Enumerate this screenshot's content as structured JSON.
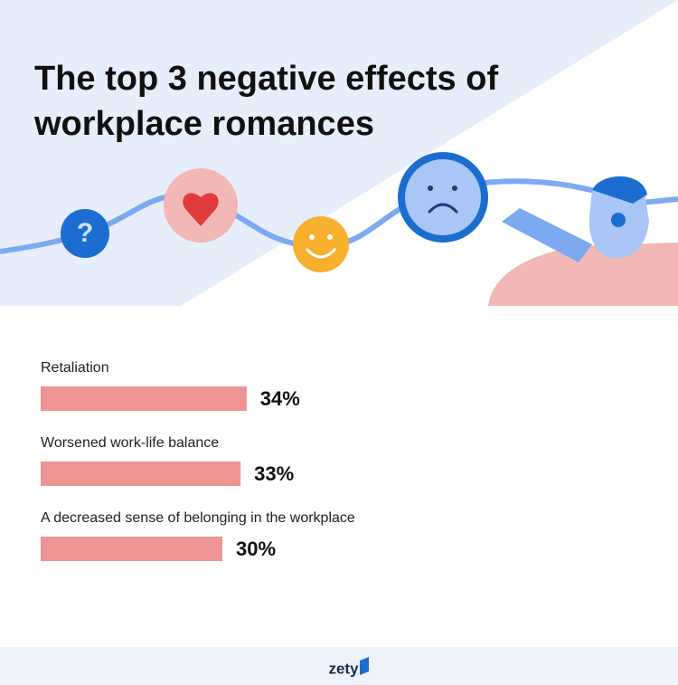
{
  "chart_data": {
    "type": "bar",
    "orientation": "horizontal",
    "title": "The top 3 negative effects of workplace romances",
    "categories": [
      "Retaliation",
      "Worsened work-life balance",
      "A decreased sense of belonging in the workplace"
    ],
    "values": [
      34,
      33,
      30
    ],
    "value_labels": [
      "34%",
      "33%",
      "30%"
    ],
    "color": "#ef9494",
    "xlim": [
      0,
      100
    ]
  },
  "brand": "zety"
}
